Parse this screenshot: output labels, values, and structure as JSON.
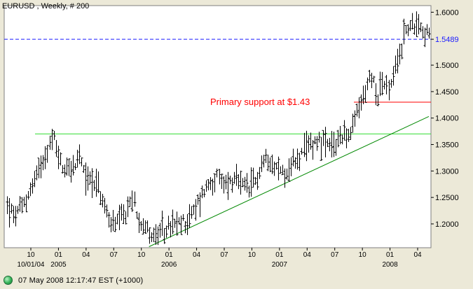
{
  "window": {
    "title": "EURUSD , Weekly, # 200",
    "status_text": "07 May 2008 12:17:47  EST (+1000)"
  },
  "chart_data": {
    "type": "ohlc",
    "title": "EURUSD , Weekly, # 200",
    "ylim": [
      1.155,
      1.6125
    ],
    "y_ticks": [
      1.2,
      1.25,
      1.3,
      1.35,
      1.4,
      1.45,
      1.5,
      1.5489,
      1.6
    ],
    "y_tick_labels": [
      "1.2000",
      "1.2500",
      "1.3000",
      "1.3500",
      "1.4000",
      "1.4500",
      "1.5000",
      "1.5489",
      "1.6000"
    ],
    "x_ticks": [
      {
        "label": "10",
        "year": "10/01/04"
      },
      {
        "label": "01",
        "year": "2005"
      },
      {
        "label": "04",
        "year": ""
      },
      {
        "label": "07",
        "year": ""
      },
      {
        "label": "10",
        "year": ""
      },
      {
        "label": "01",
        "year": "2006"
      },
      {
        "label": "04",
        "year": ""
      },
      {
        "label": "07",
        "year": ""
      },
      {
        "label": "10",
        "year": ""
      },
      {
        "label": "01",
        "year": "2007"
      },
      {
        "label": "04",
        "year": ""
      },
      {
        "label": "07",
        "year": ""
      },
      {
        "label": "10",
        "year": ""
      },
      {
        "label": "01",
        "year": "2008"
      },
      {
        "label": "04",
        "year": ""
      }
    ],
    "weeks": 200,
    "price_path": [
      [
        0,
        1.235
      ],
      [
        3,
        1.215
      ],
      [
        6,
        1.225
      ],
      [
        9,
        1.245
      ],
      [
        12,
        1.275
      ],
      [
        15,
        1.305
      ],
      [
        18,
        1.335
      ],
      [
        21,
        1.355
      ],
      [
        22,
        1.362
      ],
      [
        24,
        1.33
      ],
      [
        26,
        1.305
      ],
      [
        29,
        1.31
      ],
      [
        32,
        1.305
      ],
      [
        34,
        1.33
      ],
      [
        36,
        1.295
      ],
      [
        39,
        1.285
      ],
      [
        42,
        1.28
      ],
      [
        45,
        1.24
      ],
      [
        48,
        1.21
      ],
      [
        51,
        1.195
      ],
      [
        53,
        1.205
      ],
      [
        56,
        1.215
      ],
      [
        58,
        1.24
      ],
      [
        60,
        1.24
      ],
      [
        62,
        1.21
      ],
      [
        64,
        1.205
      ],
      [
        66,
        1.19
      ],
      [
        69,
        1.175
      ],
      [
        72,
        1.18
      ],
      [
        75,
        1.19
      ],
      [
        78,
        1.195
      ],
      [
        81,
        1.2
      ],
      [
        84,
        1.205
      ],
      [
        87,
        1.215
      ],
      [
        90,
        1.24
      ],
      [
        93,
        1.265
      ],
      [
        96,
        1.28
      ],
      [
        99,
        1.285
      ],
      [
        102,
        1.275
      ],
      [
        105,
        1.28
      ],
      [
        108,
        1.28
      ],
      [
        111,
        1.27
      ],
      [
        114,
        1.265
      ],
      [
        117,
        1.28
      ],
      [
        120,
        1.31
      ],
      [
        123,
        1.33
      ],
      [
        126,
        1.31
      ],
      [
        129,
        1.3
      ],
      [
        132,
        1.295
      ],
      [
        135,
        1.315
      ],
      [
        138,
        1.325
      ],
      [
        141,
        1.34
      ],
      [
        144,
        1.355
      ],
      [
        147,
        1.36
      ],
      [
        150,
        1.35
      ],
      [
        153,
        1.34
      ],
      [
        156,
        1.36
      ],
      [
        159,
        1.375
      ],
      [
        161,
        1.36
      ],
      [
        163,
        1.38
      ],
      [
        165,
        1.41
      ],
      [
        167,
        1.43
      ],
      [
        169,
        1.45
      ],
      [
        171,
        1.475
      ],
      [
        173,
        1.47
      ],
      [
        175,
        1.445
      ],
      [
        177,
        1.47
      ],
      [
        179,
        1.455
      ],
      [
        181,
        1.46
      ],
      [
        183,
        1.49
      ],
      [
        185,
        1.52
      ],
      [
        187,
        1.555
      ],
      [
        189,
        1.575
      ],
      [
        191,
        1.57
      ],
      [
        193,
        1.585
      ],
      [
        195,
        1.575
      ],
      [
        197,
        1.56
      ],
      [
        199,
        1.555
      ]
    ],
    "range": 0.02,
    "annotations": [
      {
        "label": "Primary support at $1.43",
        "value": 1.43,
        "color": "#ff0000"
      },
      {
        "label": "",
        "value": 1.5489,
        "color": "#1a1aff",
        "style": "dashed"
      },
      {
        "label": "",
        "value": 1.37,
        "color": "#33dd33",
        "style": "solid"
      }
    ],
    "trendline": {
      "from": [
        67,
        1.157
      ],
      "to": [
        199,
        1.403
      ],
      "color": "#008800"
    },
    "grid": false,
    "colors": {
      "bars": "#000000",
      "background": "#ffffff"
    }
  }
}
